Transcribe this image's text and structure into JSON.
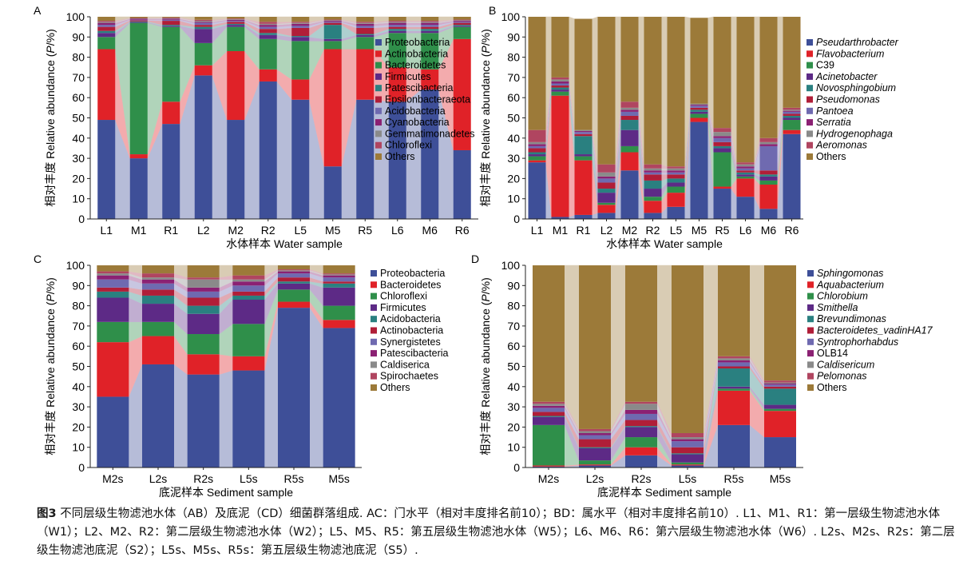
{
  "caption": {
    "label": "图3",
    "text": "不同层级生物滤池水体（AB）及底泥（CD）细菌群落组成. AC：门水平（相对丰度排名前10）；BD：属水平（相对丰度排名前10）. L1、M1、R1：第一层级生物滤池水体（W1）；L2、M2、R2：第二层级生物滤池水体（W2）；L5、M5、R5：第五层级生物滤池水体（W5）；L6、M6、R6：第六层级生物滤池水体（W6）. L2s、M2s、R2s：第二层级生物滤池底泥（S2）；L5s、M5s、R5s：第五层级生物滤池底泥（S5）."
  },
  "chart_data": [
    {
      "panel": "A",
      "type": "bar",
      "stacked": true,
      "ylabel_cn": "相对丰度",
      "ylabel_en": "Relative abundance (",
      "ylabel_em": "P",
      "ylabel_tail": "/%)",
      "xlabel": "水体样本 Water sample",
      "ylim": [
        0,
        100
      ],
      "ticks": [
        0,
        10,
        20,
        30,
        40,
        50,
        60,
        70,
        80,
        90,
        100
      ],
      "categories": [
        "L1",
        "M1",
        "R1",
        "L2",
        "M2",
        "R2",
        "L5",
        "M5",
        "R5",
        "L6",
        "M6",
        "R6"
      ],
      "legend_italic": false,
      "series": [
        {
          "name": "Proteobacteria",
          "color": "#3e4f98",
          "values": [
            49,
            30,
            47,
            71,
            49,
            68,
            59,
            26,
            59,
            58,
            64,
            34
          ]
        },
        {
          "name": "Actinobacteria",
          "color": "#e02228",
          "values": [
            35,
            2,
            11,
            5,
            34,
            6,
            10,
            58,
            25,
            17,
            10,
            55
          ]
        },
        {
          "name": "Bacteroidetes",
          "color": "#2f8f4a",
          "values": [
            6,
            65,
            37,
            11,
            12,
            15,
            19,
            4,
            6,
            17,
            18,
            6
          ]
        },
        {
          "name": "Firmicutes",
          "color": "#5d2a86",
          "values": [
            2,
            0.4,
            0.5,
            7,
            1,
            2,
            2,
            1,
            1,
            1,
            1,
            0.5
          ]
        },
        {
          "name": "Patescibacteria",
          "color": "#2a8080",
          "values": [
            1,
            0.3,
            0.5,
            1,
            0.5,
            1,
            0.5,
            7,
            0.5,
            1,
            1,
            0.5
          ]
        },
        {
          "name": "Epsilonbacteraeota",
          "color": "#b01e38",
          "values": [
            2,
            0.5,
            2,
            1,
            1,
            2,
            4,
            1,
            3,
            1,
            1,
            1
          ]
        },
        {
          "name": "Acidobacteria",
          "color": "#6f6ab0",
          "values": [
            1,
            0.3,
            0.5,
            1,
            0.5,
            1,
            1,
            0.5,
            1,
            1,
            1,
            0.5
          ]
        },
        {
          "name": "Cyanobacteria",
          "color": "#8b2173",
          "values": [
            1,
            0.5,
            0.5,
            0.5,
            0.5,
            1,
            1,
            0.5,
            1,
            1,
            1,
            0.5
          ]
        },
        {
          "name": "Gemmatimonadetes",
          "color": "#8a8a8a",
          "values": [
            0.5,
            0.2,
            0.3,
            0.5,
            0.3,
            0.5,
            0.5,
            0.3,
            0.5,
            0.5,
            0.5,
            0.3
          ]
        },
        {
          "name": "Chloroflexi",
          "color": "#b04560",
          "values": [
            0.5,
            0.2,
            0.3,
            0.5,
            0.3,
            1,
            0.5,
            0.3,
            0.5,
            0.5,
            0.5,
            0.3
          ]
        },
        {
          "name": "Others",
          "color": "#9c7a39",
          "values": [
            2,
            0.6,
            0.4,
            2,
            0.9,
            2.5,
            2.5,
            1.4,
            2.5,
            2,
            2,
            1.4
          ]
        }
      ]
    },
    {
      "panel": "B",
      "type": "bar",
      "stacked": true,
      "ylabel_cn": "相对丰度",
      "ylabel_en": "Relative abundance (",
      "ylabel_em": "P",
      "ylabel_tail": "/%)",
      "xlabel": "水体样本 Water sample",
      "ylim": [
        0,
        100
      ],
      "ticks": [
        0,
        10,
        20,
        30,
        40,
        50,
        60,
        70,
        80,
        90,
        100
      ],
      "categories": [
        "L1",
        "M1",
        "R1",
        "L2",
        "M2",
        "R2",
        "L5",
        "M5",
        "R5",
        "L6",
        "M6",
        "R6"
      ],
      "legend_italic": true,
      "series": [
        {
          "name": "Pseudarthrobacter",
          "color": "#3e4f98",
          "values": [
            28,
            1,
            2,
            3,
            24,
            3,
            6,
            48,
            15,
            11,
            5,
            42
          ]
        },
        {
          "name": "Flavobacterium",
          "color": "#e02228",
          "values": [
            1,
            60,
            27,
            4,
            9,
            6,
            7,
            2,
            1,
            9,
            12,
            2
          ]
        },
        {
          "name": "C39",
          "color": "#2f8f4a",
          "values": [
            2,
            2,
            2,
            1,
            3,
            2,
            3,
            2,
            17,
            1,
            2,
            5
          ],
          "italic": false
        },
        {
          "name": "Acinetobacter",
          "color": "#5d2a86",
          "values": [
            1,
            1,
            1,
            5,
            8,
            4,
            2,
            1,
            2,
            1,
            2,
            1
          ]
        },
        {
          "name": "Novosphingobium",
          "color": "#2a8080",
          "values": [
            1,
            1,
            9,
            2,
            5,
            4,
            2,
            1,
            1,
            1,
            1,
            1
          ]
        },
        {
          "name": "Pseudomonas",
          "color": "#b01e38",
          "values": [
            2,
            1,
            1,
            3,
            2,
            3,
            2,
            1,
            2,
            1,
            2,
            1
          ]
        },
        {
          "name": "Pantoea",
          "color": "#6f6ab0",
          "values": [
            1,
            1,
            1,
            2,
            2,
            1,
            1,
            1,
            2,
            1,
            12,
            1
          ]
        },
        {
          "name": "Serratia",
          "color": "#8b2173",
          "values": [
            1,
            1,
            0.5,
            1,
            1,
            1,
            1,
            0.5,
            1,
            1,
            1,
            0.5
          ]
        },
        {
          "name": "Hydrogenophaga",
          "color": "#8a8a8a",
          "values": [
            1,
            1,
            0.5,
            2,
            1,
            1,
            1,
            0.5,
            2,
            1,
            1,
            0.5
          ]
        },
        {
          "name": "Aeromonas",
          "color": "#b04560",
          "values": [
            6,
            1,
            0,
            4,
            3,
            2,
            1,
            0,
            2,
            1,
            2,
            1
          ]
        },
        {
          "name": "Others",
          "color": "#9c7a39",
          "values": [
            56,
            30,
            55,
            73,
            42,
            73,
            74,
            42.5,
            55,
            72,
            60,
            45
          ]
        }
      ]
    },
    {
      "panel": "C",
      "type": "bar",
      "stacked": true,
      "ylabel_cn": "相对丰度",
      "ylabel_en": "Relative abundance (",
      "ylabel_em": "P",
      "ylabel_tail": "/%)",
      "xlabel": "底泥样本 Sediment sample",
      "ylim": [
        0,
        100
      ],
      "ticks": [
        0,
        10,
        20,
        30,
        40,
        50,
        60,
        70,
        80,
        90,
        100
      ],
      "categories": [
        "M2s",
        "L2s",
        "R2s",
        "L5s",
        "R5s",
        "M5s"
      ],
      "legend_italic": false,
      "series": [
        {
          "name": "Proteobacteria",
          "color": "#3e4f98",
          "values": [
            35,
            51,
            46,
            48,
            79,
            69
          ]
        },
        {
          "name": "Bacteroidetes",
          "color": "#e02228",
          "values": [
            27,
            14,
            10,
            7,
            3,
            4
          ]
        },
        {
          "name": "Chloroflexi",
          "color": "#2f8f4a",
          "values": [
            10,
            7,
            10,
            16,
            6,
            7
          ]
        },
        {
          "name": "Firmicutes",
          "color": "#5d2a86",
          "values": [
            12,
            9,
            10,
            12,
            3,
            9
          ]
        },
        {
          "name": "Acidobacteria",
          "color": "#2a8080",
          "values": [
            3,
            4,
            4,
            2,
            1,
            2
          ]
        },
        {
          "name": "Actinobacteria",
          "color": "#b01e38",
          "values": [
            2,
            3,
            4,
            2,
            2,
            1
          ]
        },
        {
          "name": "Synergistetes",
          "color": "#6f6ab0",
          "values": [
            4,
            3,
            3,
            3,
            2,
            2
          ]
        },
        {
          "name": "Patescibacteria",
          "color": "#8b2173",
          "values": [
            2,
            2,
            2,
            2,
            1,
            1
          ]
        },
        {
          "name": "Caldiserica",
          "color": "#8a8a8a",
          "values": [
            1,
            1,
            4,
            1,
            0.5,
            0.5
          ]
        },
        {
          "name": "Spirochaetes",
          "color": "#b04560",
          "values": [
            1,
            2,
            1,
            2,
            0.5,
            0.5
          ]
        },
        {
          "name": "Others",
          "color": "#9c7a39",
          "values": [
            3,
            4,
            6,
            5,
            2,
            4
          ]
        }
      ]
    },
    {
      "panel": "D",
      "type": "bar",
      "stacked": true,
      "ylabel_cn": "相对丰度",
      "ylabel_en": "Relative abundance (",
      "ylabel_em": "P",
      "ylabel_tail": "/%)",
      "xlabel": "底泥样本 Sediment sample",
      "ylim": [
        0,
        100
      ],
      "ticks": [
        0,
        10,
        20,
        30,
        40,
        50,
        60,
        70,
        80,
        90,
        100
      ],
      "categories": [
        "M2s",
        "L2s",
        "R2s",
        "L5s",
        "R5s",
        "M5s"
      ],
      "legend_italic": true,
      "series": [
        {
          "name": "Sphingomonas",
          "color": "#3e4f98",
          "values": [
            0.5,
            1,
            6,
            1,
            21,
            15
          ]
        },
        {
          "name": "Aquabacterium",
          "color": "#e02228",
          "values": [
            0.5,
            0.5,
            4,
            0.5,
            17,
            13
          ]
        },
        {
          "name": "Chlorobium",
          "color": "#2f8f4a",
          "values": [
            20,
            2,
            5,
            1,
            1,
            1
          ]
        },
        {
          "name": "Smithella",
          "color": "#5d2a86",
          "values": [
            4,
            6,
            5,
            4,
            1,
            2
          ]
        },
        {
          "name": "Brevundimonas",
          "color": "#2a8080",
          "values": [
            0.5,
            0.5,
            0.5,
            0.5,
            9,
            8
          ]
        },
        {
          "name": "Bacteroidetes_vadinHA17",
          "color": "#b01e38",
          "values": [
            2,
            4,
            3,
            3,
            1,
            1
          ]
        },
        {
          "name": "Syntrophorhabdus",
          "color": "#6f6ab0",
          "values": [
            2,
            2,
            3,
            3,
            2,
            1
          ]
        },
        {
          "name": "OLB14",
          "color": "#8b2173",
          "values": [
            1,
            1,
            2,
            1,
            1,
            0.5
          ],
          "italic": false
        },
        {
          "name": "Caldisericum",
          "color": "#8a8a8a",
          "values": [
            1,
            1,
            3,
            1,
            1,
            0.5
          ]
        },
        {
          "name": "Pelomonas",
          "color": "#b04560",
          "values": [
            1,
            1,
            1,
            2,
            1,
            1
          ]
        },
        {
          "name": "Others",
          "color": "#9c7a39",
          "values": [
            67.5,
            81,
            67.5,
            83,
            45,
            57
          ]
        }
      ]
    }
  ]
}
